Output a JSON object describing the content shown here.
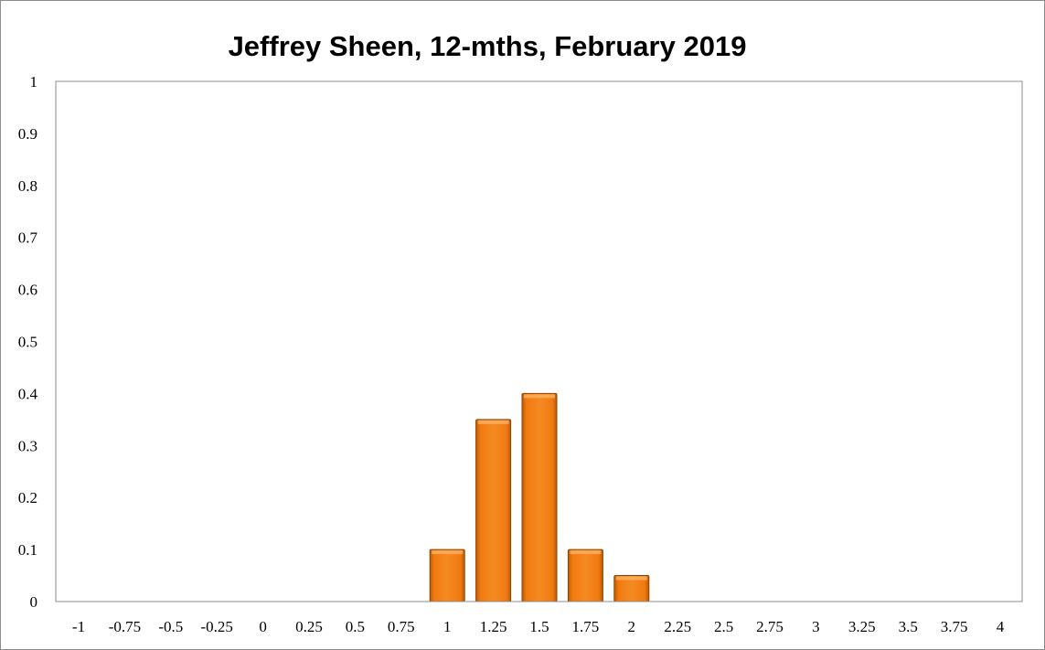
{
  "chart_data": {
    "type": "bar",
    "title": "Jeffrey Sheen, 12-mths, February 2019",
    "categories": [
      "-1",
      "-0.75",
      "-0.5",
      "-0.25",
      "0",
      "0.25",
      "0.5",
      "0.75",
      "1",
      "1.25",
      "1.5",
      "1.75",
      "2",
      "2.25",
      "2.5",
      "2.75",
      "3",
      "3.25",
      "3.5",
      "3.75",
      "4"
    ],
    "values": [
      0,
      0,
      0,
      0,
      0,
      0,
      0,
      0,
      0.1,
      0.35,
      0.4,
      0.1,
      0.05,
      0,
      0,
      0,
      0,
      0,
      0,
      0,
      0
    ],
    "y_ticks": [
      "0",
      "0.1",
      "0.2",
      "0.3",
      "0.4",
      "0.5",
      "0.6",
      "0.7",
      "0.8",
      "0.9",
      "1"
    ],
    "ylim": [
      0,
      1
    ],
    "xlabel": "",
    "ylabel": "",
    "grid": false,
    "legend": "none",
    "bar_color": "#f07a10",
    "bar_edge_color": "#8a4506"
  }
}
